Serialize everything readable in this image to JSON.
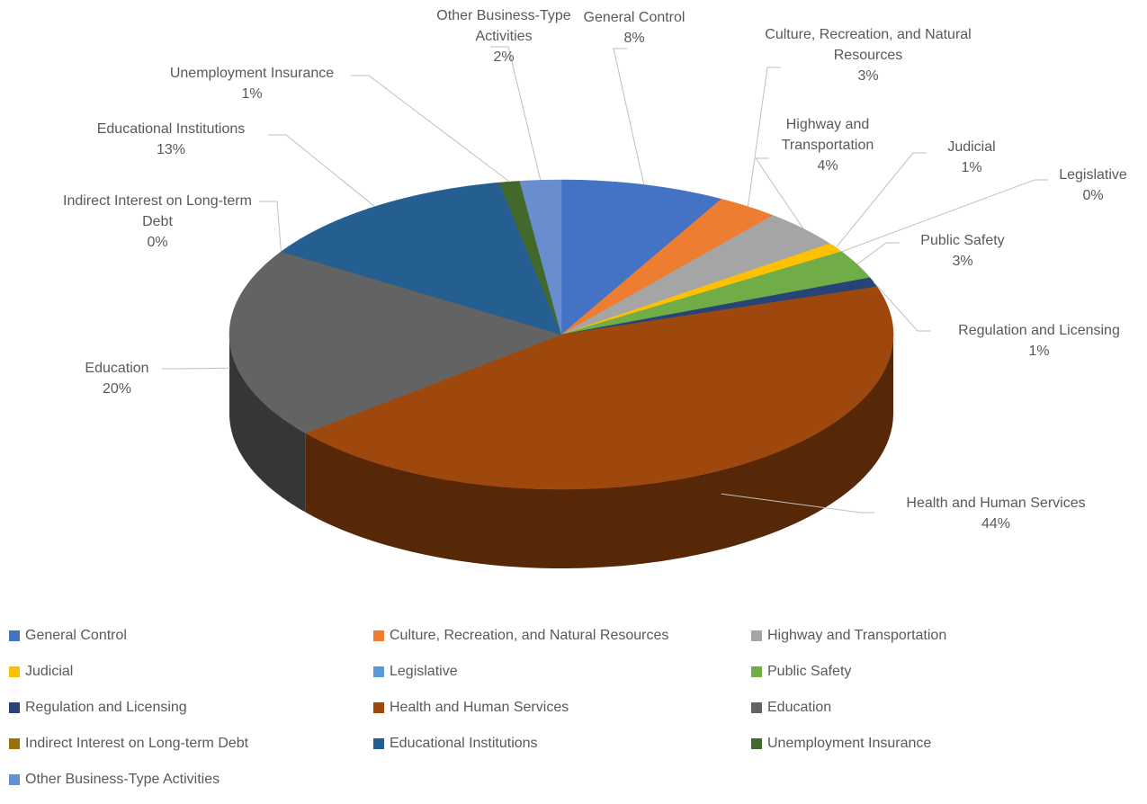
{
  "chart_data": {
    "type": "pie3d",
    "categories": [
      "General Control",
      "Culture, Recreation, and Natural Resources",
      "Highway and Transportation",
      "Judicial",
      "Legislative",
      "Public Safety",
      "Regulation and Licensing",
      "Health and Human Services",
      "Education",
      "Indirect Interest on Long-term Debt",
      "Educational Institutions",
      "Unemployment Insurance",
      "Other Business-Type Activities"
    ],
    "values": [
      8,
      3,
      4,
      1,
      0,
      3,
      1,
      44,
      20,
      0,
      13,
      1,
      2
    ],
    "value_labels": [
      "8%",
      "3%",
      "4%",
      "1%",
      "0%",
      "3%",
      "1%",
      "44%",
      "20%",
      "0%",
      "13%",
      "1%",
      "2%"
    ],
    "colors": [
      "#4472c4",
      "#ed7d31",
      "#a5a5a5",
      "#ffc000",
      "#5b9bd5",
      "#70ad47",
      "#264478",
      "#9e480e",
      "#636363",
      "#997300",
      "#255e91",
      "#43682b",
      "#698ed0"
    ],
    "legend": "bottom"
  }
}
